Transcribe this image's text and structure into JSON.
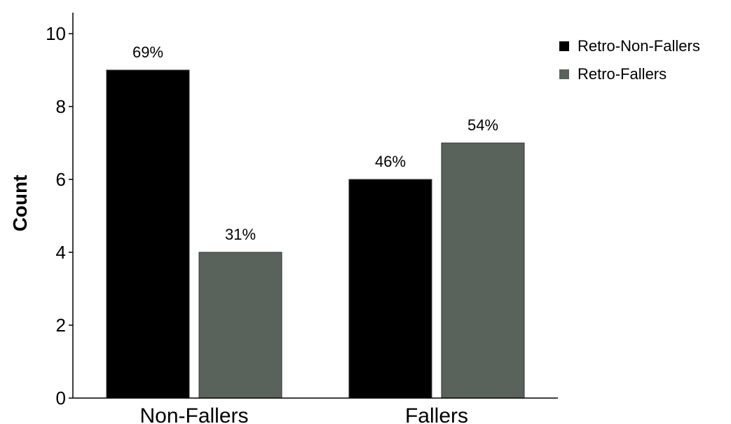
{
  "chart_data": {
    "type": "bar",
    "categories": [
      "Non-Fallers",
      "Fallers"
    ],
    "series": [
      {
        "name": "Retro-Non-Fallers",
        "values": [
          9,
          6
        ],
        "labels": [
          "69%",
          "46%"
        ],
        "color": "#000000"
      },
      {
        "name": "Retro-Fallers",
        "values": [
          4,
          7
        ],
        "labels": [
          "31%",
          "54%"
        ],
        "color": "#5a625c"
      }
    ],
    "title": "",
    "xlabel": "",
    "ylabel": "Count",
    "ylim": [
      0,
      10
    ],
    "yticks": [
      0,
      2,
      4,
      6,
      8,
      10
    ],
    "grid": false,
    "legend_position": "top-right"
  }
}
